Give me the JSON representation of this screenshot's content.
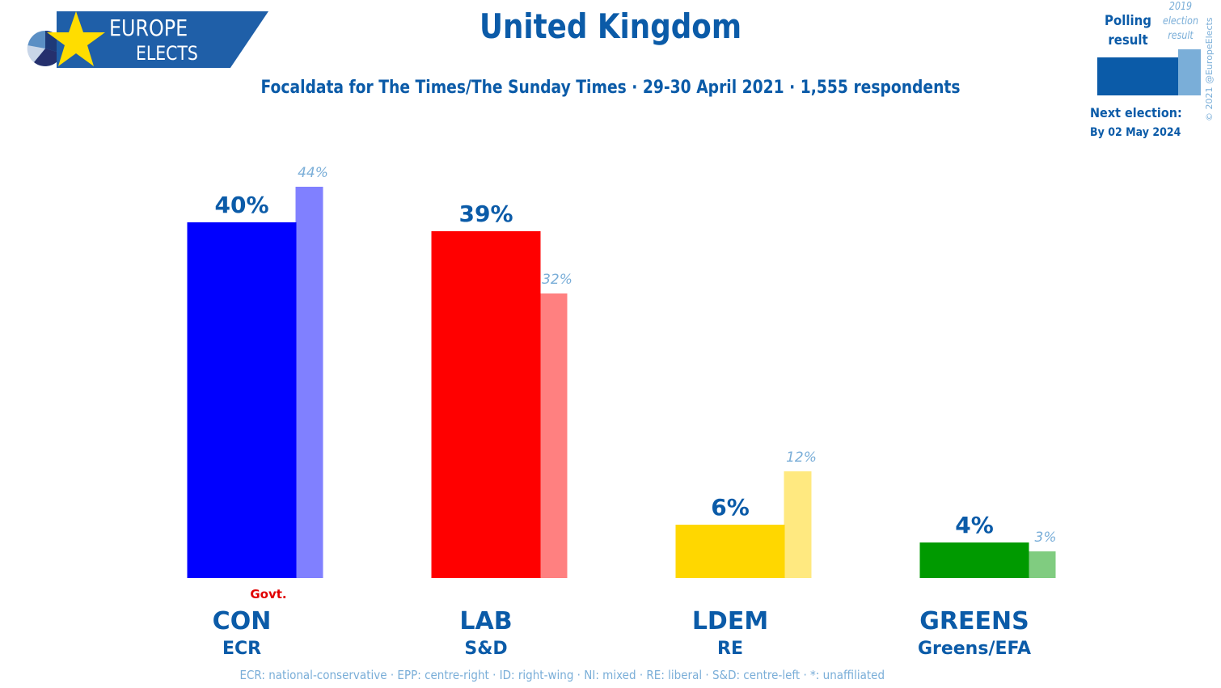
{
  "logo": {
    "line1": "EUROPE",
    "line2": "ELECTS"
  },
  "title": "United Kingdom",
  "subtitle": "Focaldata for The Times/The Sunday Times · 29-30 April 2021 · 1,555 respondents",
  "legend": {
    "poll_label": "Polling result",
    "election_label": "2019 election result",
    "poll_color": "#0b5ba8",
    "election_color": "#7aaed8"
  },
  "copyright": "© 2021 @EuropeElects",
  "next_election": {
    "label": "Next election:",
    "date": "By 02 May 2024"
  },
  "footnote": "ECR: national-conservative · EPP: centre-right · ID: right-wing · NI: mixed · RE: liberal · S&D: centre-left · *: unaffiliated",
  "chart_data": {
    "type": "bar",
    "categories": [
      "CON",
      "LAB",
      "LDEM",
      "GREENS"
    ],
    "groups": [
      "ECR",
      "S&D",
      "RE",
      "Greens/EFA"
    ],
    "series": [
      {
        "name": "Polling result",
        "values": [
          40,
          39,
          6,
          4
        ]
      },
      {
        "name": "2019 election result",
        "values": [
          44,
          32,
          12,
          3
        ]
      }
    ],
    "value_labels": [
      "40%",
      "39%",
      "6%",
      "4%"
    ],
    "previous_labels": [
      "44%",
      "32%",
      "12%",
      "3%"
    ],
    "colors": [
      "#0000ff",
      "#ff0000",
      "#ffd700",
      "#009a00"
    ],
    "light_colors": [
      "#8080ff",
      "#ff8080",
      "#ffe980",
      "#80cc80"
    ],
    "annotations": [
      {
        "category": "CON",
        "text": "Govt."
      }
    ],
    "ylim": [
      0,
      44
    ]
  }
}
